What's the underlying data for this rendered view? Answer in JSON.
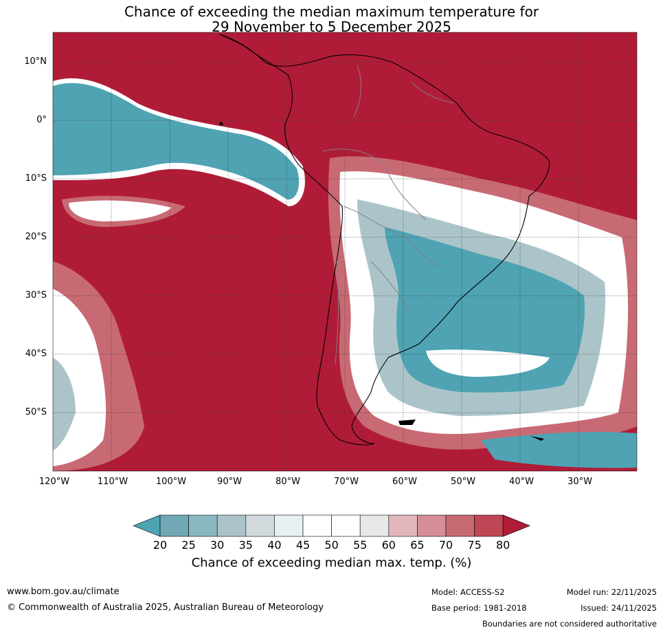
{
  "title": {
    "line1": "Chance of exceeding the median maximum temperature for",
    "line2": "29 November to 5 December 2025"
  },
  "axes": {
    "lat_labels": [
      "10°N",
      "0°",
      "10°S",
      "20°S",
      "30°S",
      "40°S",
      "50°S"
    ],
    "lon_labels": [
      "120°W",
      "110°W",
      "100°W",
      "90°W",
      "80°W",
      "70°W",
      "60°W",
      "50°W",
      "40°W",
      "30°W"
    ]
  },
  "colorbar": {
    "ticks": [
      "20",
      "25",
      "30",
      "35",
      "40",
      "45",
      "50",
      "55",
      "60",
      "65",
      "70",
      "75",
      "80"
    ],
    "colors": [
      "#6ea9b5",
      "#8bb7c3",
      "#abc4ca",
      "#d2dadd",
      "#e9f0f2",
      "#ffffff",
      "#ffffff",
      "#e8e8e8",
      "#e2b6bb",
      "#d68d96",
      "#c86a74",
      "#bf4654"
    ],
    "under_color": "#4fa3b3",
    "over_color": "#b01c37",
    "label": "Chance of exceeding median max. temp. (%)"
  },
  "map_colors": {
    "high": "#b01c37",
    "mid_high": "#c86a74",
    "neutral": "#ffffff",
    "low_light": "#d2dadd",
    "low": "#4fa3b3",
    "land_border": "#000000",
    "country_border": "#808080"
  },
  "footer": {
    "url": "www.bom.gov.au/climate",
    "copyright": "© Commonwealth of Australia 2025, Australian Bureau of Meteorology",
    "model": "Model: ACCESS-S2",
    "base_period": "Base period: 1981-2018",
    "model_run": "Model run: 22/11/2025",
    "issued": "Issued: 24/11/2025",
    "disclaimer": "Boundaries are not considered authoritative"
  }
}
